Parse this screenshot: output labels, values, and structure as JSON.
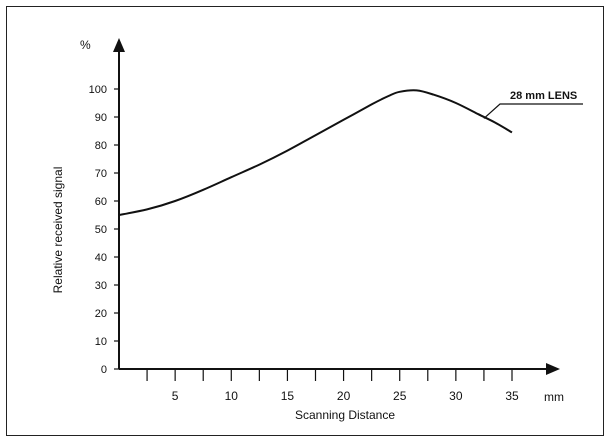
{
  "chart_data": {
    "type": "line",
    "title": "",
    "xlabel": "Scanning Distance",
    "ylabel": "Relative received signal",
    "x_unit": "mm",
    "y_unit": "%",
    "xlim": [
      0,
      35
    ],
    "ylim": [
      0,
      100
    ],
    "x_ticks": [
      5,
      10,
      15,
      20,
      25,
      30,
      35
    ],
    "x_minor_ticks": [
      2.5,
      5,
      7.5,
      10,
      12.5,
      15,
      17.5,
      20,
      22.5,
      25,
      27.5,
      30,
      32.5,
      35
    ],
    "y_ticks": [
      0,
      10,
      20,
      30,
      40,
      50,
      60,
      70,
      80,
      90,
      100
    ],
    "grid": false,
    "series": [
      {
        "name": "28 mm LENS",
        "color": "#111111",
        "x": [
          0,
          2.5,
          5,
          7.5,
          10,
          12.5,
          15,
          17.5,
          20,
          22.5,
          24,
          25,
          26.5,
          28,
          30,
          32,
          33.5,
          35
        ],
        "y": [
          55,
          57,
          60,
          64,
          68.5,
          73,
          78,
          83.5,
          89,
          94.5,
          97.5,
          99,
          99.5,
          98,
          95,
          91,
          88,
          84.5
        ]
      }
    ],
    "annotations": [
      {
        "text": "28 mm LENS",
        "points_to": [
          32.5,
          89.5
        ]
      }
    ]
  }
}
